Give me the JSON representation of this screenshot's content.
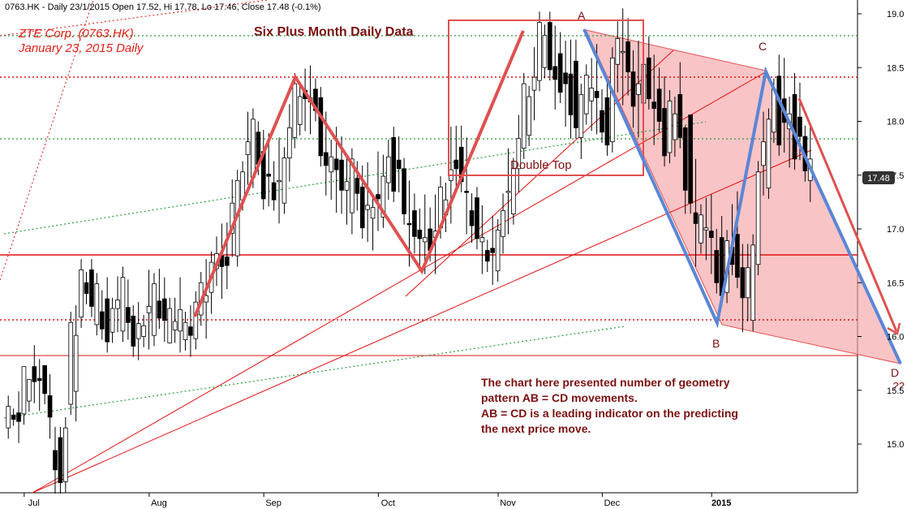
{
  "header": {
    "info": "0763.HK - Daily 23/1/2015 Open 17.52, Hi 17.78, Lo 17.46, Close 17.48 (-0.1%)"
  },
  "annotations": {
    "ticker_line": "ZTE Corp. (0763.HK)",
    "date_line": "January 23, 2015 Daily",
    "title": "Six Plus Month Daily Data",
    "double_top": "Double Top",
    "point_a": "A",
    "point_b": "B",
    "point_c": "C",
    "point_d": "D",
    "point_d_q": "??",
    "note_lines": [
      "The chart here presented number of geometry",
      "pattern AB = CD movements.",
      "AB = CD is a leading indicator on the predicting",
      "the next price move."
    ]
  },
  "price_badge": "17.48",
  "colors": {
    "up_candle": "#ffffff",
    "down_candle": "#000000",
    "red_zigzag": "#e05050",
    "blue_abcd": "#5b86d6",
    "pink_fill": "#f6a5a8",
    "level_red": "#e01010",
    "green_dotted": "#2a9a3a"
  },
  "chart_data": {
    "type": "candlestick",
    "title": "Six Plus Month Daily Data",
    "ylim": [
      14.5,
      19.2
    ],
    "y_ticks": [
      "15.0",
      "15.5",
      "16.0",
      "16.5",
      "17.0",
      "17.5",
      "18.0",
      "18.5",
      "19.0"
    ],
    "y_tick_values": [
      15.0,
      15.5,
      16.0,
      16.5,
      17.0,
      17.5,
      18.0,
      18.5,
      19.0
    ],
    "x_months": [
      "Jul",
      "Aug",
      "Sep",
      "Oct",
      "Nov",
      "Dec",
      "2015"
    ],
    "x_month_index": [
      2,
      26,
      48,
      70,
      93,
      113,
      134
    ],
    "bars_count": 155,
    "ohlc_sample": [
      [
        15.3,
        15.3,
        15.2,
        15.2
      ],
      [
        15.2,
        15.4,
        15.1,
        15.3
      ],
      [
        15.4,
        15.6,
        15.3,
        15.6
      ],
      [
        15.6,
        15.8,
        15.5,
        15.7
      ],
      [
        15.7,
        15.7,
        15.4,
        15.5
      ],
      [
        15.3,
        15.5,
        15.2,
        15.4
      ],
      [
        15.0,
        15.1,
        14.6,
        14.7
      ],
      [
        14.8,
        15.1,
        14.7,
        15.0
      ],
      [
        15.4,
        16.2,
        15.3,
        16.1
      ],
      [
        16.3,
        16.6,
        16.2,
        16.5
      ],
      [
        16.5,
        16.6,
        16.3,
        16.4
      ],
      [
        16.2,
        16.5,
        16.1,
        16.4
      ],
      [
        16.2,
        16.4,
        16.0,
        16.1
      ],
      [
        16.1,
        16.3,
        16.0,
        16.2
      ],
      [
        16.2,
        16.5,
        16.1,
        16.4
      ],
      [
        16.3,
        16.5,
        16.0,
        16.1
      ],
      [
        16.1,
        16.2,
        15.9,
        16.0
      ],
      [
        16.0,
        16.2,
        15.9,
        16.1
      ],
      [
        16.1,
        16.5,
        16.0,
        16.4
      ],
      [
        16.3,
        16.6,
        16.1,
        16.2
      ],
      [
        16.2,
        16.4,
        16.1,
        16.3
      ],
      [
        16.0,
        16.3,
        16.0,
        16.2
      ],
      [
        16.2,
        16.4,
        16.0,
        16.1
      ],
      [
        16.0,
        16.2,
        15.9,
        16.1
      ],
      [
        16.1,
        16.3,
        16.0,
        16.2
      ],
      [
        16.2,
        16.6,
        16.1,
        16.5
      ],
      [
        16.5,
        16.7,
        16.3,
        16.6
      ],
      [
        16.6,
        16.9,
        16.5,
        16.8
      ],
      [
        16.8,
        17.0,
        16.5,
        16.6
      ],
      [
        16.9,
        17.4,
        16.8,
        17.3
      ],
      [
        17.3,
        17.6,
        17.2,
        17.5
      ],
      [
        17.6,
        18.0,
        17.5,
        17.9
      ],
      [
        17.9,
        18.0,
        17.5,
        17.6
      ],
      [
        17.6,
        17.8,
        17.3,
        17.4
      ],
      [
        17.4,
        17.6,
        17.2,
        17.3
      ],
      [
        17.3,
        17.7,
        17.2,
        17.6
      ],
      [
        17.6,
        18.1,
        17.5,
        18.0
      ],
      [
        18.0,
        18.3,
        17.9,
        18.2
      ],
      [
        18.2,
        18.4,
        18.0,
        18.3
      ],
      [
        18.3,
        18.4,
        18.0,
        18.1
      ],
      [
        18.1,
        18.2,
        17.7,
        17.8
      ],
      [
        17.8,
        18.0,
        17.4,
        17.5
      ],
      [
        17.5,
        17.8,
        17.3,
        17.7
      ],
      [
        17.7,
        17.8,
        17.2,
        17.3
      ],
      [
        17.3,
        17.6,
        17.1,
        17.5
      ],
      [
        17.5,
        17.6,
        17.2,
        17.3
      ],
      [
        17.3,
        17.5,
        17.0,
        17.1
      ],
      [
        17.1,
        17.3,
        16.8,
        17.2
      ],
      [
        17.2,
        17.6,
        17.1,
        17.4
      ],
      [
        17.4,
        17.8,
        17.3,
        17.7
      ],
      [
        17.7,
        17.8,
        17.4,
        17.5
      ],
      [
        17.5,
        17.6,
        17.1,
        17.2
      ],
      [
        17.2,
        17.3,
        16.8,
        16.9
      ],
      [
        16.9,
        17.1,
        16.7,
        17.0
      ],
      [
        17.0,
        17.2,
        16.7,
        16.8
      ],
      [
        16.8,
        17.2,
        16.7,
        17.1
      ],
      [
        17.1,
        17.4,
        17.0,
        17.3
      ],
      [
        17.3,
        17.8,
        17.2,
        17.7
      ],
      [
        17.7,
        17.9,
        17.4,
        17.5
      ],
      [
        17.5,
        17.7,
        17.1,
        17.2
      ],
      [
        17.2,
        17.3,
        16.9,
        17.0
      ],
      [
        17.0,
        17.1,
        16.7,
        16.8
      ],
      [
        16.8,
        16.9,
        16.6,
        16.7
      ],
      [
        16.7,
        17.0,
        16.6,
        16.9
      ],
      [
        16.9,
        17.3,
        16.8,
        17.2
      ],
      [
        17.2,
        17.6,
        17.1,
        17.5
      ],
      [
        17.5,
        18.0,
        17.4,
        17.9
      ],
      [
        17.9,
        18.3,
        17.8,
        18.2
      ],
      [
        18.2,
        18.6,
        18.1,
        18.5
      ],
      [
        18.5,
        18.9,
        18.4,
        18.8
      ],
      [
        18.8,
        18.9,
        18.5,
        18.6
      ],
      [
        18.6,
        18.8,
        18.2,
        18.3
      ],
      [
        18.3,
        18.6,
        18.1,
        18.5
      ],
      [
        18.5,
        18.7,
        17.9,
        18.0
      ],
      [
        18.0,
        18.2,
        17.8,
        18.1
      ],
      [
        18.1,
        18.5,
        18.0,
        18.4
      ],
      [
        18.4,
        18.6,
        18.0,
        18.1
      ],
      [
        18.1,
        18.3,
        17.8,
        17.9
      ],
      [
        17.9,
        18.6,
        17.8,
        18.5
      ],
      [
        18.5,
        18.9,
        18.3,
        18.8
      ],
      [
        18.8,
        18.9,
        18.3,
        18.4
      ],
      [
        18.4,
        18.6,
        18.0,
        18.2
      ],
      [
        18.2,
        18.6,
        18.1,
        18.5
      ],
      [
        18.5,
        18.7,
        18.2,
        18.3
      ],
      [
        18.3,
        18.5,
        17.9,
        18.0
      ],
      [
        18.0,
        18.3,
        17.7,
        17.8
      ],
      [
        17.8,
        18.2,
        17.7,
        18.1
      ],
      [
        18.1,
        18.4,
        17.9,
        18.0
      ],
      [
        18.0,
        17.9,
        17.2,
        17.3
      ],
      [
        17.3,
        17.5,
        16.8,
        16.9
      ],
      [
        16.9,
        17.2,
        16.8,
        17.1
      ],
      [
        17.1,
        17.2,
        16.7,
        16.8
      ],
      [
        16.8,
        17.0,
        16.4,
        16.5
      ],
      [
        16.5,
        16.9,
        16.4,
        16.8
      ],
      [
        16.8,
        17.2,
        16.6,
        16.7
      ],
      [
        16.7,
        16.8,
        16.1,
        16.3
      ],
      [
        16.3,
        16.8,
        16.2,
        16.7
      ],
      [
        16.7,
        17.6,
        16.6,
        17.5
      ],
      [
        17.5,
        18.0,
        17.4,
        17.9
      ],
      [
        17.9,
        18.4,
        17.8,
        18.3
      ],
      [
        18.3,
        18.5,
        17.8,
        17.9
      ],
      [
        17.9,
        18.2,
        17.6,
        18.1
      ],
      [
        18.1,
        18.3,
        17.7,
        17.8
      ],
      [
        17.8,
        17.9,
        17.5,
        17.6
      ],
      [
        17.6,
        17.8,
        17.4,
        17.5
      ]
    ]
  }
}
